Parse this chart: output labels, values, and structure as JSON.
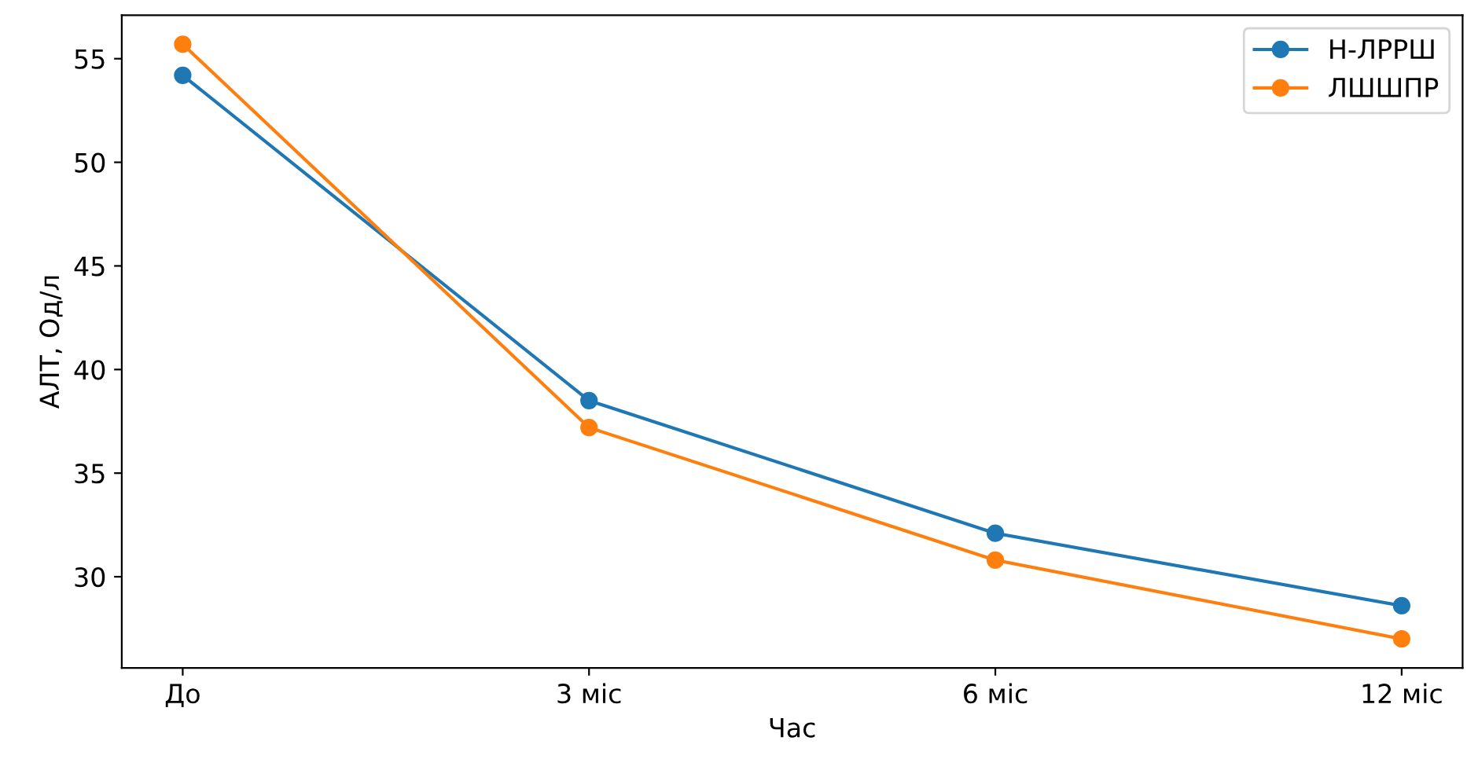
{
  "chart_data": {
    "type": "line",
    "xlabel": "Час",
    "ylabel": "АЛТ, Од/л",
    "categories": [
      "До",
      "3 міс",
      "6 міс",
      "12 міс"
    ],
    "series": [
      {
        "name": "Н-ЛРРШ",
        "color": "#1f77b4",
        "values": [
          54.2,
          38.5,
          32.1,
          28.6
        ]
      },
      {
        "name": "ЛШШПР",
        "color": "#ff7f0e",
        "values": [
          55.7,
          37.2,
          30.8,
          27.0
        ]
      }
    ],
    "ylim": [
      25.6,
      57.1
    ],
    "yticks": [
      30,
      35,
      40,
      45,
      50,
      55
    ],
    "marker": "circle",
    "line_style": "solid",
    "legend": "top right",
    "grid": false
  }
}
